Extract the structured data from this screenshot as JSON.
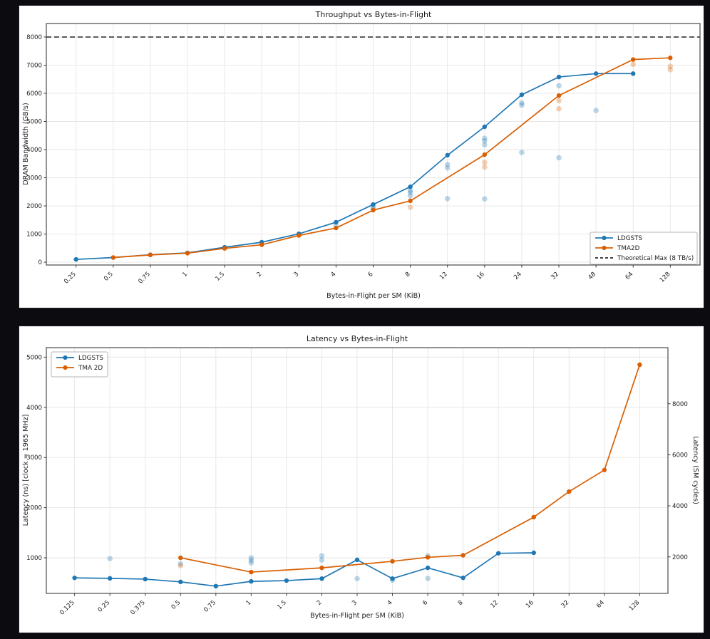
{
  "page": {
    "background": "#0b0b10",
    "panel_background": "#ffffff"
  },
  "chart_data": [
    {
      "type": "line",
      "title": "Throughput vs Bytes-in-Flight",
      "xlabel": "Bytes-in-Flight per SM (KiB)",
      "ylabel": "DRAM Bandwidth (GB/s)",
      "categories": [
        "0.25",
        "0.5",
        "0.75",
        "1",
        "1.5",
        "2",
        "3",
        "4",
        "6",
        "8",
        "12",
        "16",
        "24",
        "32",
        "48",
        "64",
        "128"
      ],
      "ylim": [
        -100,
        8480
      ],
      "yticks": [
        0,
        1000,
        2000,
        3000,
        4000,
        5000,
        6000,
        7000,
        8000
      ],
      "grid": true,
      "legend_position": "lower right",
      "series": [
        {
          "name": "LDGSTS",
          "color": "#1f77b4",
          "values": [
            100,
            165,
            265,
            330,
            530,
            710,
            1010,
            1420,
            2050,
            2680,
            3800,
            4810,
            5950,
            6580,
            6700,
            6700,
            null
          ]
        },
        {
          "name": "TMA2D",
          "color": "#d95f02",
          "values": [
            null,
            165,
            258,
            320,
            490,
            620,
            950,
            1215,
            1850,
            2180,
            null,
            3820,
            null,
            5920,
            null,
            7200,
            7260
          ]
        }
      ],
      "scatter": [
        {
          "series": "LDGSTS",
          "color": "#1f77b4",
          "points": [
            [
              "4",
              1310
            ],
            [
              "6",
              1880
            ],
            [
              "6",
              1960
            ],
            [
              "8",
              2360
            ],
            [
              "8",
              2480
            ],
            [
              "8",
              2550
            ],
            [
              "12",
              3350
            ],
            [
              "12",
              3470
            ],
            [
              "12",
              2260
            ],
            [
              "16",
              4170
            ],
            [
              "16",
              4310
            ],
            [
              "16",
              4400
            ],
            [
              "16",
              2250
            ],
            [
              "24",
              5580
            ],
            [
              "24",
              5660
            ],
            [
              "24",
              3900
            ],
            [
              "32",
              6270
            ],
            [
              "32",
              3710
            ],
            [
              "48",
              5390
            ]
          ]
        },
        {
          "series": "TMA2D",
          "color": "#d95f02",
          "points": [
            [
              "8",
              1950
            ],
            [
              "16",
              3380
            ],
            [
              "16",
              3550
            ],
            [
              "32",
              5450
            ],
            [
              "32",
              5740
            ],
            [
              "64",
              7030
            ],
            [
              "128",
              6960
            ],
            [
              "128",
              6840
            ]
          ]
        }
      ],
      "reference_line": {
        "label": "Theoretical Max (8 TB/s)",
        "value": 8000,
        "style": "dashed",
        "color": "#262626"
      }
    },
    {
      "type": "line",
      "title": "Latency vs Bytes-in-Flight",
      "xlabel": "Bytes-in-Flight per SM (KiB)",
      "ylabel": "Latency (ns)  [clock = 1965 MHz]",
      "ylabel_right": "Latency (SM cycles)",
      "categories": [
        "0.125",
        "0.25",
        "0.375",
        "0.5",
        "0.75",
        "1",
        "1.5",
        "2",
        "3",
        "4",
        "6",
        "8",
        "12",
        "16",
        "32",
        "64",
        "128"
      ],
      "ylim": [
        290,
        5190
      ],
      "yticks": [
        1000,
        2000,
        3000,
        4000,
        5000
      ],
      "right_axis": {
        "label": "Latency (SM cycles)",
        "ticks": [
          2000,
          4000,
          6000,
          8000
        ],
        "cycles_per_ns": 1.965
      },
      "grid": true,
      "legend_position": "upper left",
      "series": [
        {
          "name": "LDGSTS",
          "color": "#1f77b4",
          "values": [
            600,
            590,
            575,
            520,
            435,
            530,
            545,
            585,
            960,
            585,
            800,
            600,
            1090,
            1100,
            null,
            null,
            null
          ]
        },
        {
          "name": "TMA 2D",
          "color": "#d95f02",
          "values": [
            null,
            null,
            null,
            1000,
            null,
            715,
            null,
            800,
            null,
            930,
            1010,
            1050,
            null,
            1810,
            2320,
            2750,
            4850
          ]
        }
      ],
      "scatter": [
        {
          "series": "LDGSTS",
          "color": "#1f77b4",
          "points": [
            [
              "0.25",
              985
            ],
            [
              "0.5",
              880
            ],
            [
              "1",
              900
            ],
            [
              "1",
              950
            ],
            [
              "1",
              1000
            ],
            [
              "2",
              955
            ],
            [
              "2",
              1040
            ],
            [
              "3",
              585
            ],
            [
              "4",
              555
            ],
            [
              "6",
              1040
            ],
            [
              "6",
              590
            ]
          ]
        },
        {
          "series": "TMA 2D",
          "color": "#d95f02",
          "points": [
            [
              "0.5",
              845
            ]
          ]
        }
      ]
    }
  ]
}
